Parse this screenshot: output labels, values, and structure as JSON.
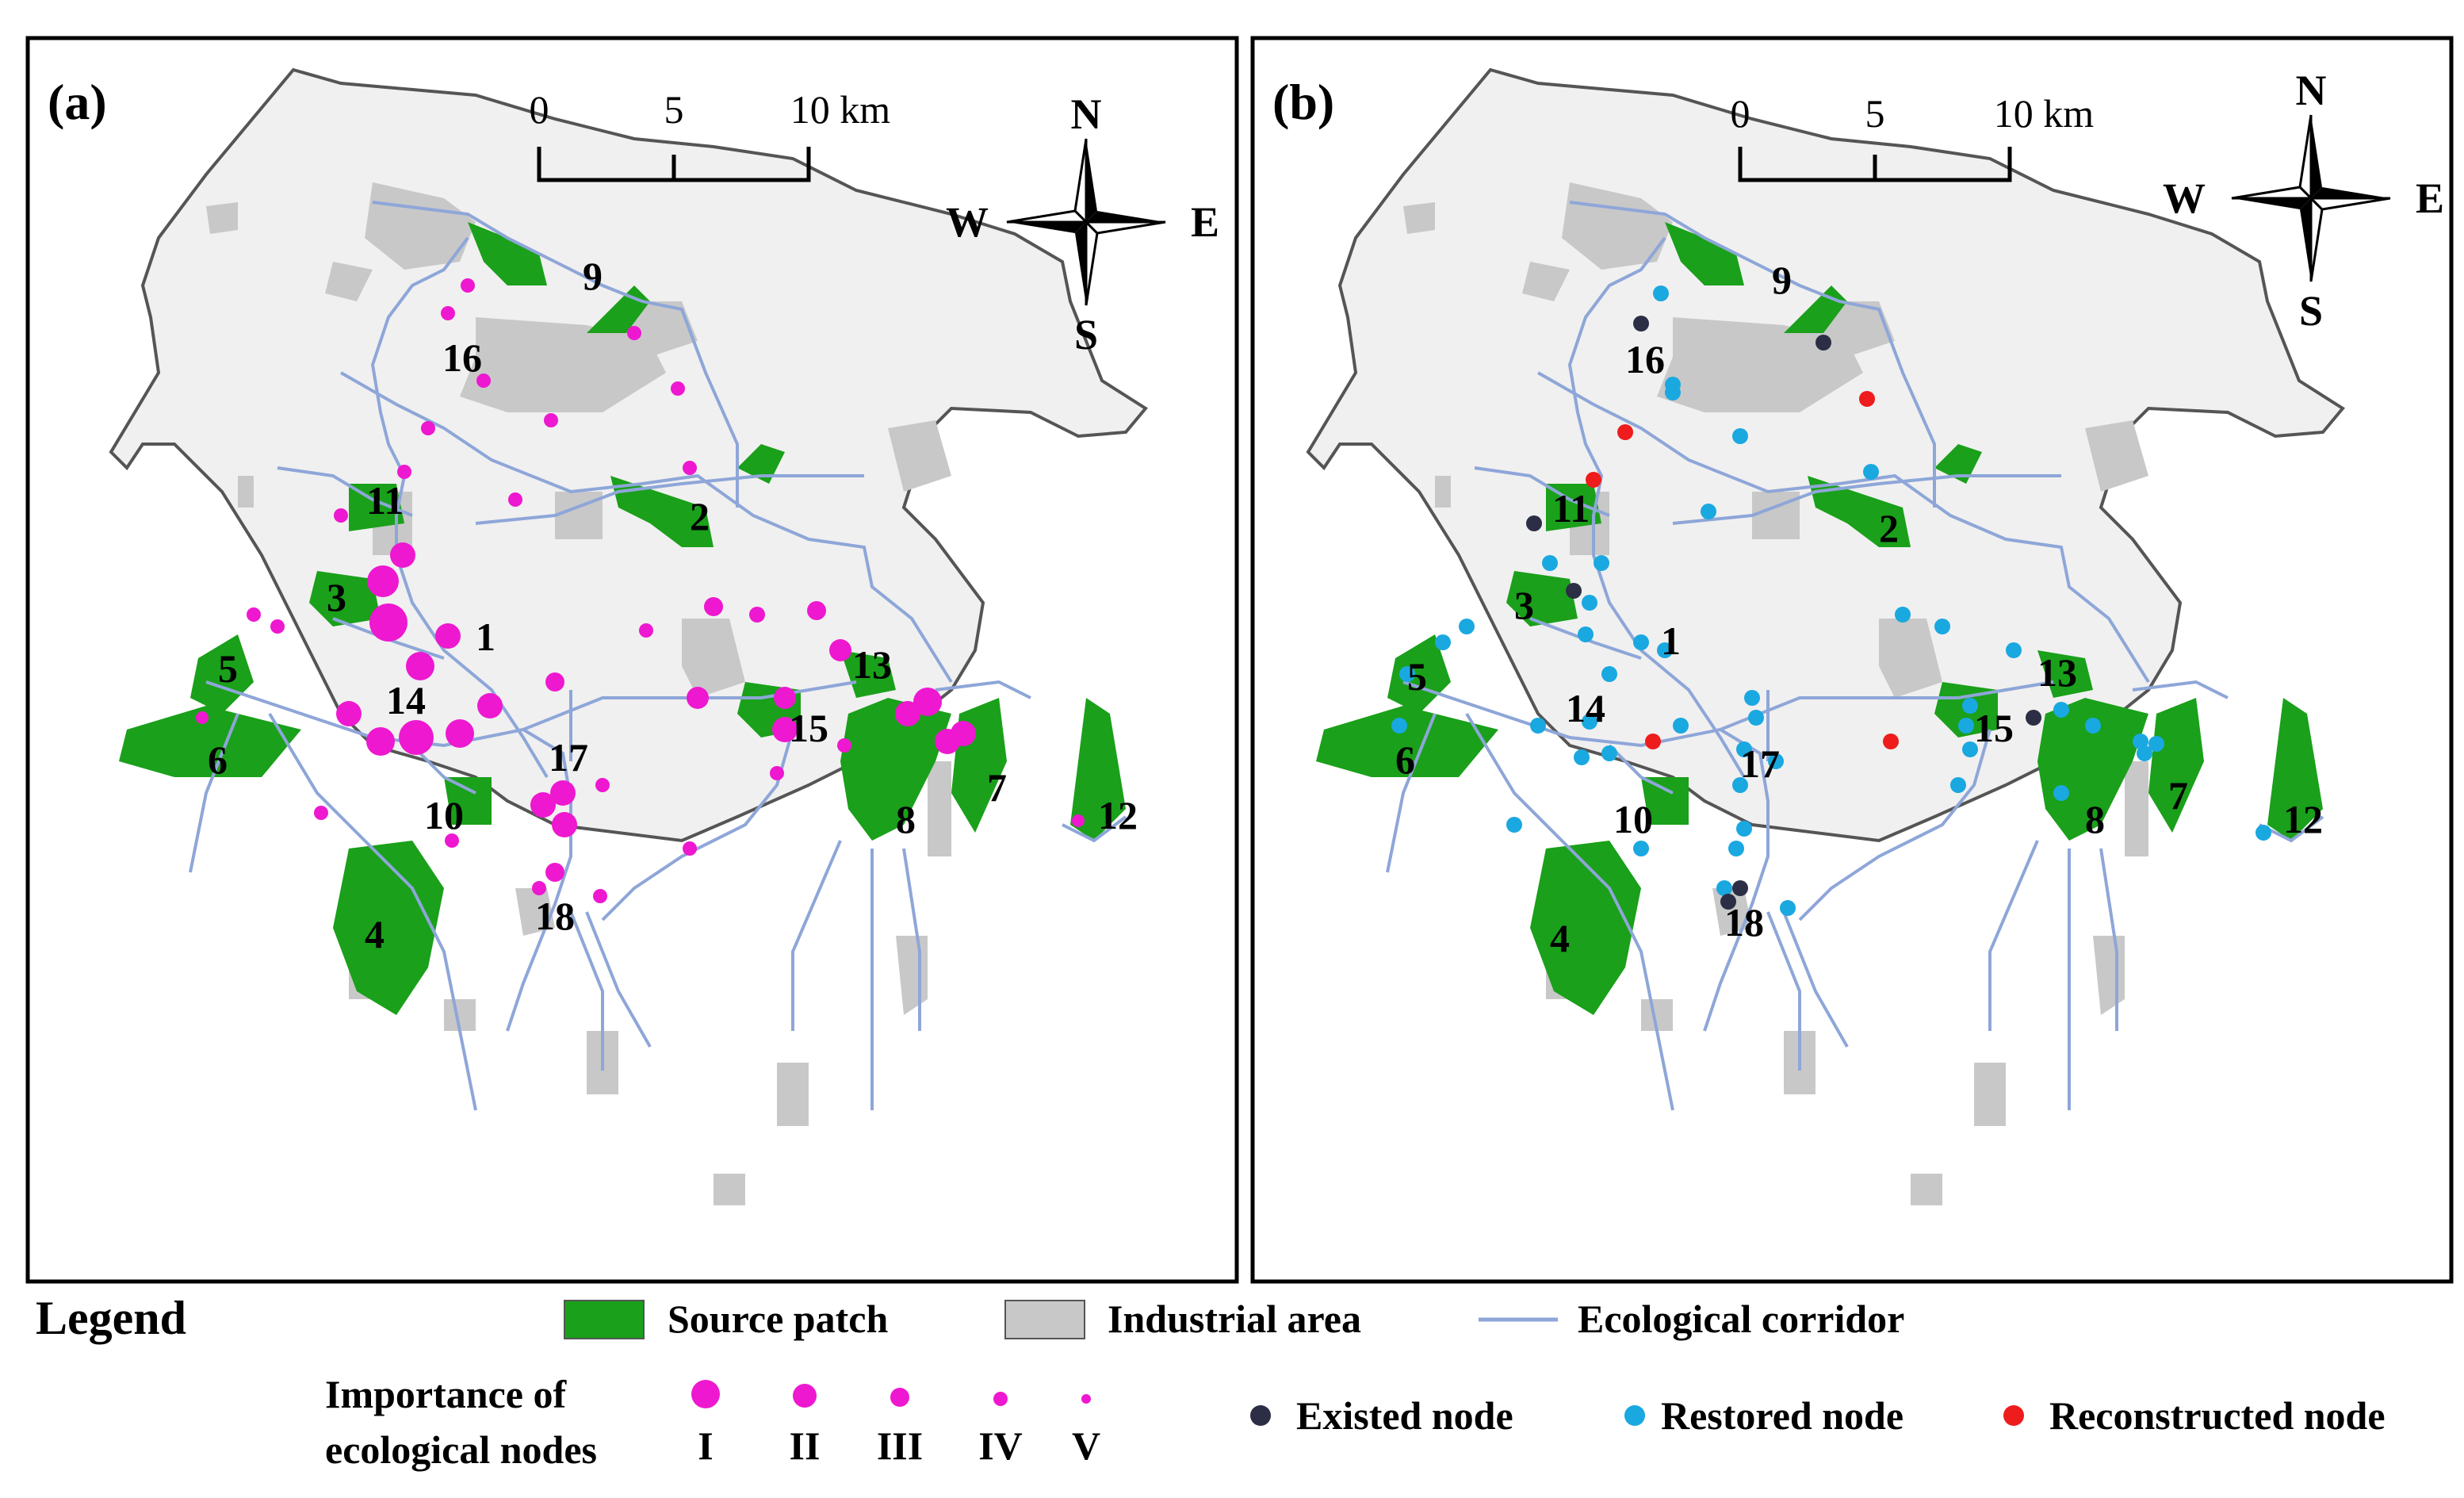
{
  "panels": [
    {
      "id": "a",
      "label": "(a)",
      "scale_ticks": [
        "0",
        "5",
        "10 km"
      ],
      "compass": {
        "n": "N",
        "s": "S",
        "w": "W",
        "e": "E"
      },
      "patch_labels": [
        "1",
        "2",
        "3",
        "4",
        "5",
        "6",
        "7",
        "8",
        "9",
        "10",
        "11",
        "12",
        "13",
        "14",
        "15",
        "16",
        "17",
        "18"
      ],
      "node_colors": {
        "importance": "#ee18d0"
      }
    },
    {
      "id": "b",
      "label": "(b)",
      "scale_ticks": [
        "0",
        "5",
        "10 km"
      ],
      "compass": {
        "n": "N",
        "s": "S",
        "w": "W",
        "e": "E"
      },
      "patch_labels": [
        "1",
        "2",
        "3",
        "4",
        "5",
        "6",
        "7",
        "8",
        "9",
        "10",
        "11",
        "12",
        "13",
        "14",
        "15",
        "16",
        "17",
        "18"
      ],
      "node_colors": {
        "existed": "#2b2e45",
        "restored": "#1aa8e0",
        "reconstructed": "#ee1c1c"
      }
    }
  ],
  "legend": {
    "title": "Legend",
    "source_patch": "Source patch",
    "industrial_area": "Industrial area",
    "ecological_corridor": "Ecological corridor",
    "importance_title_line1": "Importance of",
    "importance_title_line2": "ecological nodes",
    "importance_levels": [
      "I",
      "II",
      "III",
      "IV",
      "V"
    ],
    "existed_node": "Existed node",
    "restored_node": "Restored node",
    "reconstructed_node": "Reconstructed node"
  },
  "colors": {
    "source_patch": "#1aa01a",
    "industrial_area": "#c8c8c8",
    "study_area": "#f0f0f0",
    "corridor": "#8ea6d8",
    "importance_node": "#ee18d0",
    "existed_node": "#2b2e45",
    "restored_node": "#1aa8e0",
    "reconstructed_node": "#ee1c1c"
  }
}
